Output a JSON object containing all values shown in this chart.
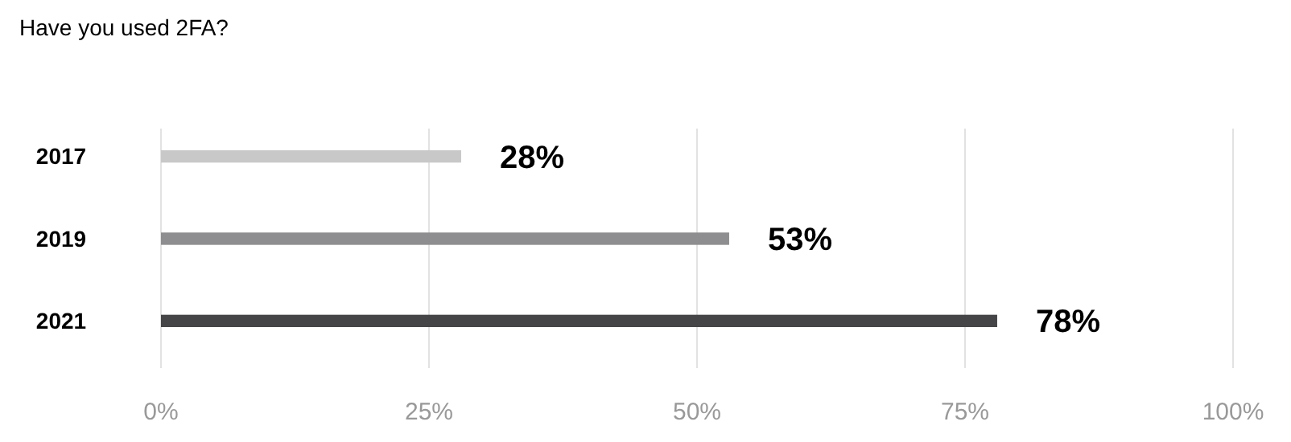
{
  "chart_data": {
    "type": "bar",
    "orientation": "horizontal",
    "title": "Have you used 2FA?",
    "categories": [
      "2017",
      "2019",
      "2021"
    ],
    "values": [
      28,
      53,
      78
    ],
    "colors": [
      "#c8c8c8",
      "#8e8e90",
      "#454547"
    ],
    "value_labels": [
      "28%",
      "53%",
      "78%"
    ],
    "xlim": [
      0,
      100
    ],
    "xticks": [
      {
        "value": 0,
        "label": "0%"
      },
      {
        "value": 25,
        "label": "25%"
      },
      {
        "value": 50,
        "label": "50%"
      },
      {
        "value": 75,
        "label": "75%"
      },
      {
        "value": 100,
        "label": "100%"
      }
    ],
    "grid": "x"
  }
}
